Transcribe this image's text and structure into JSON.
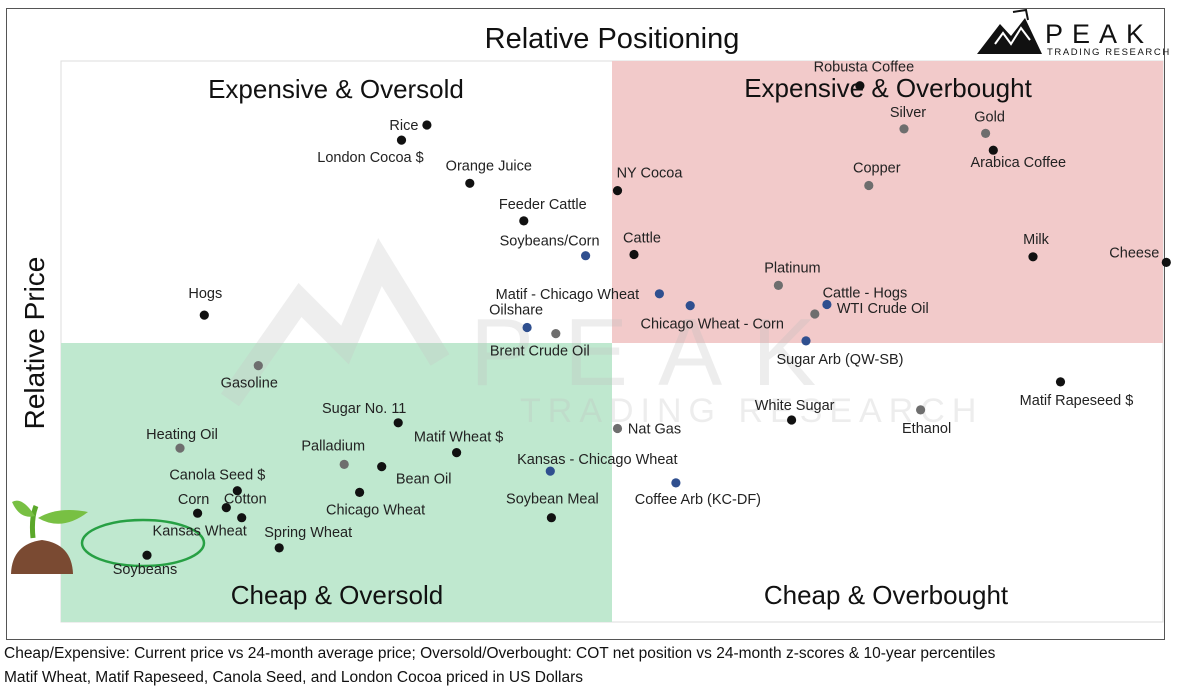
{
  "chart_data": {
    "type": "scatter",
    "title": "Relative Positioning",
    "xlabel": "",
    "ylabel": "Relative Price",
    "xlim": [
      0,
      100
    ],
    "ylim": [
      0,
      100
    ],
    "grid": false,
    "quadrants": {
      "top_left": "Expensive & Oversold",
      "top_right": "Expensive & Overbought",
      "bottom_left": "Cheap & Oversold",
      "bottom_right": "Cheap & Overbought"
    },
    "colors": {
      "outright": "#111111",
      "commodity_grey": "#6e6e6e",
      "spread": "#2f4f8f",
      "top_right_fill": "#f2caca",
      "bottom_left_fill": "#bfe8cf",
      "highlight_ring": "#27a044"
    },
    "series": [
      {
        "name": "outright",
        "color": "#111111",
        "points": [
          {
            "label": "Robusta Coffee",
            "x": 72.5,
            "y": 95.6
          },
          {
            "label": "Arabica Coffee",
            "x": 84.6,
            "y": 84.1
          },
          {
            "label": "Milk",
            "x": 88.2,
            "y": 65.1
          },
          {
            "label": "Cheese",
            "x": 100.3,
            "y": 64.1
          },
          {
            "label": "Cattle",
            "x": 52.0,
            "y": 65.5
          },
          {
            "label": "NY Cocoa",
            "x": 50.5,
            "y": 76.9
          },
          {
            "label": "Rice",
            "x": 33.2,
            "y": 88.6
          },
          {
            "label": "London Cocoa $",
            "x": 30.9,
            "y": 85.9
          },
          {
            "label": "Orange Juice",
            "x": 37.1,
            "y": 78.2
          },
          {
            "label": "Feeder Cattle",
            "x": 42.0,
            "y": 71.5
          },
          {
            "label": "Hogs",
            "x": 13.0,
            "y": 54.7
          },
          {
            "label": "Matif Rapeseed $",
            "x": 90.7,
            "y": 42.8
          },
          {
            "label": "White Sugar",
            "x": 66.3,
            "y": 36.0
          },
          {
            "label": "Sugar No. 11",
            "x": 30.6,
            "y": 35.5
          },
          {
            "label": "Matif Wheat $",
            "x": 35.9,
            "y": 30.2
          },
          {
            "label": "Bean Oil",
            "x": 29.1,
            "y": 27.7
          },
          {
            "label": "Chicago Wheat",
            "x": 27.1,
            "y": 23.1
          },
          {
            "label": "Soybean Meal",
            "x": 44.5,
            "y": 18.6
          },
          {
            "label": "Canola Seed $",
            "x": 16.0,
            "y": 23.4
          },
          {
            "label": "Cotton",
            "x": 15.0,
            "y": 20.4
          },
          {
            "label": "Corn",
            "x": 12.4,
            "y": 19.4
          },
          {
            "label": "Kansas Wheat",
            "x": 16.4,
            "y": 18.6
          },
          {
            "label": "Spring Wheat",
            "x": 19.8,
            "y": 13.2
          },
          {
            "label": "Soybeans",
            "x": 7.8,
            "y": 11.9
          }
        ]
      },
      {
        "name": "commodity_grey",
        "color": "#6e6e6e",
        "points": [
          {
            "label": "Silver",
            "x": 76.5,
            "y": 87.9
          },
          {
            "label": "Gold",
            "x": 83.9,
            "y": 87.1
          },
          {
            "label": "Copper",
            "x": 73.3,
            "y": 77.8
          },
          {
            "label": "Platinum",
            "x": 65.1,
            "y": 60.0
          },
          {
            "label": "WTI Crude Oil",
            "x": 68.4,
            "y": 54.9
          },
          {
            "label": "Brent Crude Oil",
            "x": 44.9,
            "y": 51.4
          },
          {
            "label": "Gasoline",
            "x": 17.9,
            "y": 45.7
          },
          {
            "label": "Heating Oil",
            "x": 10.8,
            "y": 31.0
          },
          {
            "label": "Nat Gas",
            "x": 50.5,
            "y": 34.5
          },
          {
            "label": "Palladium",
            "x": 25.7,
            "y": 28.1
          },
          {
            "label": "Ethanol",
            "x": 78.0,
            "y": 37.8
          }
        ]
      },
      {
        "name": "spread",
        "color": "#2f4f8f",
        "points": [
          {
            "label": "Soybeans/Corn",
            "x": 47.6,
            "y": 65.3
          },
          {
            "label": "Matif - Chicago Wheat",
            "x": 54.3,
            "y": 58.5
          },
          {
            "label": "Chicago Wheat - Corn",
            "x": 57.1,
            "y": 56.4
          },
          {
            "label": "Cattle - Hogs",
            "x": 69.5,
            "y": 56.6
          },
          {
            "label": "Oilshare",
            "x": 42.3,
            "y": 52.5
          },
          {
            "label": "Sugar Arb (QW-SB)",
            "x": 67.6,
            "y": 50.1
          },
          {
            "label": "Kansas - Chicago Wheat",
            "x": 44.4,
            "y": 26.9
          },
          {
            "label": "Coffee Arb (KC-DF)",
            "x": 55.8,
            "y": 24.8
          }
        ]
      }
    ],
    "highlight": "Soybeans",
    "footnotes": [
      "Cheap/Expensive: Current price vs 24-month average price; Oversold/Overbought: COT net position vs 24-month z-scores & 10-year percentiles",
      "Matif Wheat, Matif Rapeseed, Canola Seed, and London Cocoa priced in US Dollars"
    ]
  },
  "logo": {
    "name": "PEAK",
    "tagline": "TRADING RESEARCH"
  }
}
